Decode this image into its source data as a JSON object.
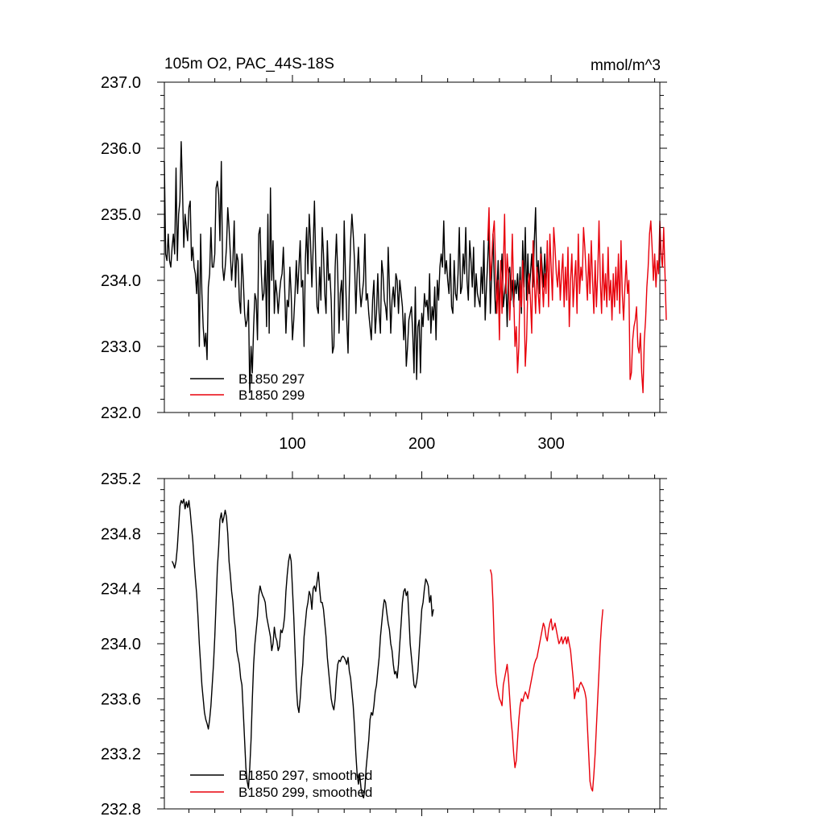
{
  "chart_data": [
    {
      "type": "line",
      "title": "105m O2, PAC_44S-18S",
      "units": "mmol/m^3",
      "ylim": [
        232.0,
        237.0
      ],
      "xlim": [
        1,
        384
      ],
      "yticks": [
        "232.0",
        "233.0",
        "234.0",
        "235.0",
        "236.0",
        "237.0"
      ],
      "xticks": [
        "100",
        "200",
        "300"
      ],
      "series": [
        {
          "name": "B1850 297",
          "color": "#000000",
          "x_start": 1,
          "values": [
            235.8,
            234.4,
            234.3,
            234.7,
            234.3,
            234.2,
            234.5,
            234.7,
            234.4,
            235.7,
            234.3,
            235.0,
            235.2,
            236.1,
            235.4,
            234.5,
            235.0,
            234.8,
            234.6,
            235.1,
            235.2,
            234.3,
            234.5,
            234.2,
            234.1,
            233.8,
            234.3,
            233.0,
            234.7,
            233.8,
            233.3,
            233.0,
            233.2,
            232.8,
            233.9,
            234.1,
            234.8,
            234.2,
            234.2,
            234.4,
            235.4,
            235.5,
            235.3,
            234.6,
            235.8,
            234.2,
            234.0,
            234.2,
            234.5,
            235.1,
            234.8,
            234.4,
            234.0,
            234.3,
            234.9,
            233.9,
            234.4,
            234.3,
            233.7,
            233.5,
            234.4,
            234.0,
            233.5,
            233.3,
            233.4,
            233.7,
            232.3,
            233.0,
            232.6,
            233.3,
            233.8,
            233.7,
            233.1,
            234.7,
            234.8,
            234.1,
            233.7,
            233.8,
            234.3,
            233.3,
            235.0,
            233.2,
            235.4,
            234.0,
            234.6,
            233.5,
            234.0,
            233.8,
            233.5,
            233.8,
            234.0,
            234.1,
            234.5,
            233.9,
            233.2,
            233.7,
            233.6,
            234.2,
            233.8,
            233.1,
            233.4,
            233.8,
            234.3,
            233.8,
            234.2,
            234.6,
            233.9,
            234.0,
            233.0,
            234.3,
            234.8,
            234.1,
            235.0,
            234.6,
            233.9,
            234.5,
            235.2,
            234.3,
            233.6,
            233.5,
            234.2,
            233.7,
            234.8,
            234.4,
            233.8,
            233.5,
            234.6,
            234.0,
            234.1,
            233.7,
            232.9,
            233.0,
            234.2,
            234.7,
            234.1,
            233.2,
            233.8,
            234.0,
            233.4,
            234.9,
            234.1,
            233.4,
            232.9,
            233.9,
            234.6,
            235.0,
            234.7,
            234.3,
            233.5,
            234.1,
            234.5,
            233.9,
            233.6,
            233.8,
            234.0,
            234.7,
            233.7,
            233.8,
            233.5,
            233.3,
            233.1,
            233.7,
            234.0,
            233.2,
            233.5,
            234.1,
            233.5,
            233.2,
            234.3,
            234.1,
            233.7,
            233.6,
            233.4,
            234.5,
            233.9,
            233.2,
            233.7,
            233.9,
            233.6,
            234.1,
            234.0,
            233.5,
            234.0,
            233.8,
            233.6,
            233.1,
            233.5,
            232.7,
            233.0,
            233.4,
            233.5,
            233.6,
            233.2,
            232.6,
            233.9,
            232.5,
            233.3,
            233.4,
            232.6,
            233.5,
            233.3,
            233.8,
            233.6,
            233.7,
            233.4,
            234.1,
            233.2,
            233.6,
            233.4,
            233.9,
            233.1,
            234.0,
            233.7,
            234.2,
            234.4,
            234.2,
            234.9,
            234.1,
            234.3,
            234.0,
            233.8,
            234.4,
            233.6,
            233.5,
            234.3,
            233.8,
            233.7,
            234.1,
            234.8,
            233.8,
            233.9,
            234.4,
            234.1,
            234.8,
            234.0,
            233.7,
            234.6,
            234.3,
            233.9,
            234.5,
            233.6,
            234.1,
            233.8,
            233.7,
            233.6,
            234.2,
            233.8,
            234.6,
            233.4,
            233.9,
            234.3,
            234.8,
            233.5,
            234.1,
            234.7,
            234.0,
            233.5,
            233.8,
            234.3,
            233.5,
            234.0,
            234.4,
            233.6,
            233.8,
            234.0,
            233.3,
            234.1,
            234.2,
            233.7,
            234.0,
            233.6,
            234.0,
            233.8,
            234.1,
            233.7,
            234.2,
            233.5,
            234.6,
            233.9,
            234.8,
            233.7,
            234.4,
            233.8,
            234.1,
            234.4,
            233.9,
            234.6,
            235.1,
            234.0,
            234.3,
            233.8,
            234.5,
            234.2,
            233.9,
            234.4,
            234.0,
            234.3
          ]
        },
        {
          "name": "B1850 299",
          "color": "#e8000b",
          "x_start": 251,
          "values": [
            234.6,
            235.1,
            234.0,
            234.3,
            234.7,
            234.9,
            234.2,
            233.5,
            234.0,
            233.1,
            234.3,
            233.5,
            234.2,
            235.0,
            233.8,
            234.4,
            234.1,
            233.4,
            233.9,
            234.7,
            233.8,
            233.0,
            233.3,
            232.6,
            233.0,
            234.0,
            233.6,
            234.3,
            233.8,
            232.7,
            233.1,
            233.9,
            234.1,
            233.7,
            233.2,
            234.6,
            234.0,
            233.5,
            234.2,
            233.8,
            233.5,
            234.4,
            234.0,
            233.6,
            234.1,
            233.8,
            234.6,
            233.6,
            234.7,
            234.2,
            233.7,
            234.8,
            234.5,
            234.1,
            233.9,
            234.3,
            233.7,
            234.1,
            234.4,
            233.6,
            234.2,
            233.7,
            234.5,
            233.3,
            234.0,
            234.4,
            233.6,
            234.0,
            234.3,
            233.5,
            234.7,
            233.8,
            234.2,
            234.0,
            234.8,
            234.5,
            234.1,
            233.7,
            234.4,
            233.8,
            234.6,
            234.0,
            233.5,
            234.3,
            233.6,
            234.1,
            234.9,
            234.0,
            233.5,
            234.4,
            233.7,
            234.1,
            233.6,
            234.5,
            233.7,
            234.0,
            233.4,
            234.1,
            233.6,
            234.2,
            233.7,
            234.4,
            233.5,
            234.6,
            233.8,
            233.4,
            233.9,
            234.3,
            233.8,
            234.0,
            232.5,
            232.6,
            233.1,
            233.3,
            233.4,
            233.6,
            233.0,
            232.9,
            233.2,
            232.6,
            232.3,
            233.1,
            233.4,
            233.9,
            234.2,
            234.7,
            234.9,
            234.5,
            234.0,
            234.4,
            233.9,
            234.3,
            234.1,
            234.9,
            234.4,
            234.2,
            234.8,
            234.1,
            233.4
          ]
        }
      ]
    },
    {
      "type": "line",
      "ylim": [
        232.8,
        235.2
      ],
      "xlim": [
        1,
        384
      ],
      "yticks": [
        "232.8",
        "233.2",
        "233.6",
        "234.0",
        "234.4",
        "234.8",
        "235.2"
      ],
      "series": [
        {
          "name": "B1850 297, smoothed",
          "color": "#000000",
          "x_start": 7,
          "values": [
            234.6,
            234.58,
            234.55,
            234.6,
            234.7,
            234.85,
            235.0,
            235.04,
            235.02,
            235.05,
            234.98,
            235.03,
            234.99,
            235.04,
            234.96,
            234.85,
            234.75,
            234.6,
            234.47,
            234.36,
            234.2,
            234.0,
            233.85,
            233.7,
            233.6,
            233.5,
            233.45,
            233.42,
            233.38,
            233.45,
            233.55,
            233.7,
            233.85,
            234.05,
            234.3,
            234.55,
            234.7,
            234.9,
            234.95,
            234.88,
            234.92,
            234.97,
            234.92,
            234.8,
            234.6,
            234.5,
            234.38,
            234.3,
            234.18,
            234.1,
            233.95,
            233.9,
            233.85,
            233.75,
            233.7,
            233.5,
            233.3,
            233.1,
            233.0,
            232.95,
            233.1,
            233.3,
            233.6,
            233.85,
            234.0,
            234.1,
            234.2,
            234.35,
            234.42,
            234.38,
            234.35,
            234.33,
            234.3,
            234.2,
            234.15,
            234.1,
            234.05,
            233.95,
            234.0,
            234.12,
            234.05,
            234.02,
            233.95,
            233.98,
            234.1,
            234.08,
            234.12,
            234.2,
            234.38,
            234.5,
            234.6,
            234.65,
            234.6,
            234.4,
            234.2,
            233.95,
            233.7,
            233.55,
            233.5,
            233.6,
            233.75,
            233.85,
            234.05,
            234.15,
            234.25,
            234.3,
            234.38,
            234.35,
            234.25,
            234.4,
            234.42,
            234.38,
            234.45,
            234.52,
            234.4,
            234.3,
            234.3,
            234.25,
            234.15,
            234.05,
            233.9,
            233.8,
            233.7,
            233.6,
            233.55,
            233.52,
            233.6,
            233.75,
            233.85,
            233.88,
            233.87,
            233.9,
            233.91,
            233.9,
            233.88,
            233.85,
            233.9,
            233.8,
            233.75,
            233.65,
            233.55,
            233.4,
            233.2,
            233.05,
            232.98,
            233.05,
            232.95,
            232.9,
            232.88,
            232.95,
            233.1,
            233.2,
            233.3,
            233.45,
            233.5,
            233.48,
            233.55,
            233.65,
            233.7,
            233.8,
            233.9,
            234.05,
            234.15,
            234.25,
            234.32,
            234.3,
            234.22,
            234.15,
            234.1,
            234.0,
            233.95,
            233.85,
            233.78,
            233.8,
            233.75,
            233.85,
            234.0,
            234.15,
            234.3,
            234.38,
            234.4,
            234.35,
            234.38,
            234.2,
            234.0,
            233.9,
            233.8,
            233.7,
            233.68,
            233.72,
            233.8,
            233.95,
            234.1,
            234.25,
            234.3,
            234.4,
            234.47,
            234.45,
            234.42,
            234.3,
            234.35,
            234.2,
            234.25
          ]
        },
        {
          "name": "B1850 299, smoothed",
          "color": "#e8000b",
          "x_start": 253,
          "values": [
            234.54,
            234.5,
            234.3,
            234.0,
            233.8,
            233.7,
            233.65,
            233.6,
            233.58,
            233.55,
            233.7,
            233.75,
            233.8,
            233.85,
            233.75,
            233.6,
            233.45,
            233.35,
            233.2,
            233.1,
            233.15,
            233.3,
            233.45,
            233.55,
            233.6,
            233.58,
            233.62,
            233.65,
            233.63,
            233.6,
            233.65,
            233.7,
            233.75,
            233.8,
            233.85,
            233.88,
            233.9,
            233.95,
            234.0,
            234.05,
            234.1,
            234.15,
            234.12,
            234.05,
            234.02,
            234.1,
            234.15,
            234.18,
            234.1,
            234.12,
            234.15,
            234.1,
            234.05,
            234.0,
            234.02,
            234.05,
            234.0,
            234.03,
            234.05,
            234.0,
            234.05,
            234.0,
            233.95,
            233.85,
            233.75,
            233.6,
            233.65,
            233.68,
            233.65,
            233.7,
            233.72,
            233.7,
            233.68,
            233.65,
            233.6,
            233.4,
            233.2,
            233.0,
            232.95,
            232.93,
            233.05,
            233.2,
            233.4,
            233.6,
            233.8,
            234.0,
            234.15,
            234.25
          ]
        }
      ]
    }
  ]
}
